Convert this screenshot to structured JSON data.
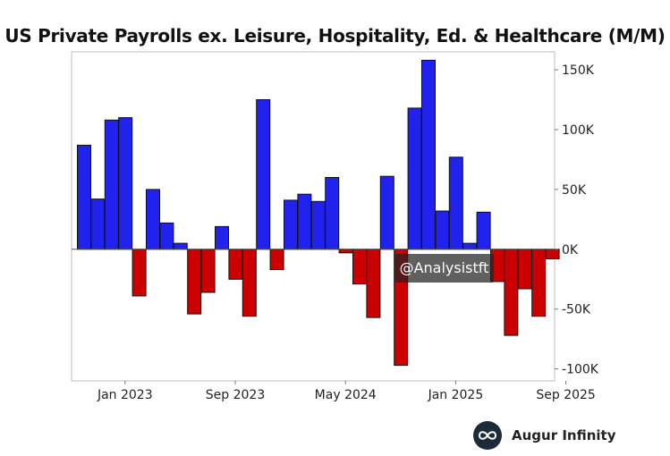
{
  "chart_data": {
    "type": "bar",
    "title": "US Private Payrolls ex. Leisure, Hospitality, Ed. & Healthcare (M/M)",
    "xlabel": "",
    "ylabel": "",
    "ylim": [
      -110,
      165
    ],
    "yticks": [
      150,
      100,
      50,
      0,
      -50,
      -100
    ],
    "ytick_labels": [
      "150K",
      "100K",
      "50K",
      "0K",
      "-50K",
      "-100K"
    ],
    "xtick_labels": [
      {
        "label": "Jan 2023",
        "index": 3
      },
      {
        "label": "Sep 2023",
        "index": 11
      },
      {
        "label": "May 2024",
        "index": 19
      },
      {
        "label": "Jan 2025",
        "index": 27
      },
      {
        "label": "Sep 2025",
        "index": 35
      }
    ],
    "positive_color": "#2222ee",
    "negative_color": "#cc0000",
    "unit": "thousands",
    "values": [
      87,
      42,
      108,
      110,
      -39,
      50,
      22,
      5,
      -54,
      -36,
      19,
      -25,
      -56,
      125,
      -17,
      41,
      46,
      40,
      60,
      -3,
      -29,
      -57,
      61,
      -97,
      118,
      158,
      32,
      77,
      5,
      31,
      -27,
      -72,
      -33,
      -56,
      -8
    ]
  },
  "watermark": "@Analysistft",
  "brand": {
    "name": "Augur Infinity",
    "logo_icon": "infinity-icon",
    "logo_bg": "#1d2a3a"
  }
}
